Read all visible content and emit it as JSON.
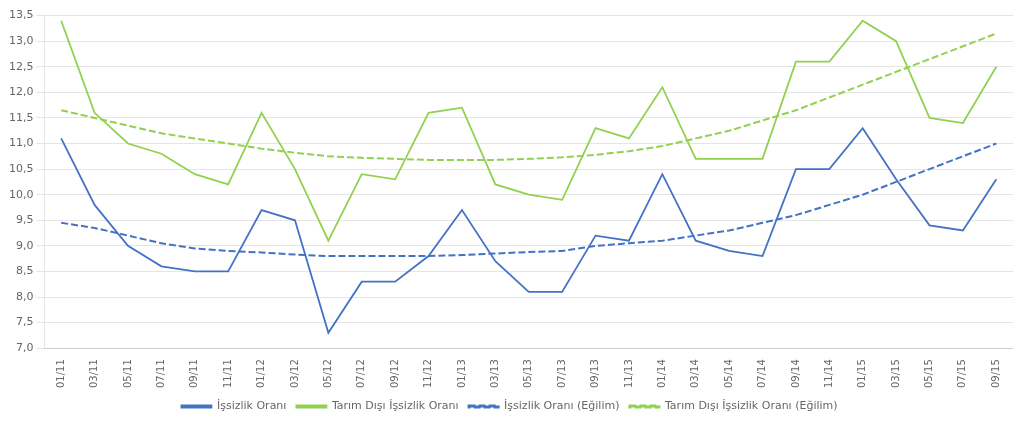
{
  "chart_data": {
    "type": "line",
    "categories": [
      "01/11",
      "03/11",
      "05/11",
      "07/11",
      "09/11",
      "11/11",
      "01/12",
      "03/12",
      "05/12",
      "07/12",
      "09/12",
      "11/12",
      "01/13",
      "03/13",
      "05/13",
      "07/13",
      "09/13",
      "11/13",
      "01/14",
      "03/14",
      "05/14",
      "07/14",
      "09/14",
      "11/14",
      "01/15",
      "03/15",
      "05/15",
      "07/15",
      "09/15"
    ],
    "series": [
      {
        "name": "İşsizlik Oranı",
        "color": "#4472C4",
        "line_style": "solid",
        "values": [
          11.1,
          9.8,
          9.0,
          8.6,
          8.5,
          8.5,
          9.7,
          9.5,
          7.3,
          8.3,
          8.3,
          8.8,
          9.7,
          8.7,
          8.1,
          8.1,
          9.2,
          9.1,
          10.4,
          9.1,
          8.9,
          8.8,
          10.5,
          10.5,
          11.3,
          10.3,
          9.4,
          9.3,
          10.3
        ]
      },
      {
        "name": "Tarım Dışı İşsizlik Oranı",
        "color": "#92D050",
        "line_style": "solid",
        "values": [
          13.4,
          11.6,
          11.0,
          10.8,
          10.4,
          10.2,
          11.6,
          10.5,
          9.1,
          10.4,
          10.3,
          11.6,
          11.7,
          10.2,
          10.0,
          9.9,
          11.3,
          11.1,
          12.1,
          10.7,
          10.7,
          10.7,
          12.6,
          12.6,
          13.4,
          13.0,
          11.5,
          11.4,
          12.5
        ]
      },
      {
        "name": "İşsizlik Oranı (Eğilim)",
        "color": "#4472C4",
        "line_style": "dashed",
        "values": [
          9.45,
          9.35,
          9.2,
          9.05,
          8.95,
          8.9,
          8.87,
          8.83,
          8.8,
          8.8,
          8.8,
          8.8,
          8.82,
          8.85,
          8.88,
          8.9,
          9.0,
          9.05,
          9.1,
          9.2,
          9.3,
          9.45,
          9.6,
          9.8,
          10.0,
          10.25,
          10.5,
          10.75,
          11.0
        ]
      },
      {
        "name": "Tarım Dışı İşsizlik Oranı (Eğilim)",
        "color": "#92D050",
        "line_style": "dashed",
        "values": [
          11.65,
          11.5,
          11.35,
          11.2,
          11.1,
          11.0,
          10.9,
          10.82,
          10.75,
          10.72,
          10.7,
          10.68,
          10.68,
          10.68,
          10.7,
          10.73,
          10.78,
          10.85,
          10.95,
          11.1,
          11.25,
          11.45,
          11.65,
          11.9,
          12.15,
          12.4,
          12.65,
          12.9,
          13.15
        ]
      }
    ],
    "ylim": [
      7.0,
      13.5
    ],
    "yticks": [
      {
        "value": 7.0,
        "label": "7,0"
      },
      {
        "value": 7.5,
        "label": "7,5"
      },
      {
        "value": 8.0,
        "label": "8,0"
      },
      {
        "value": 8.5,
        "label": "8,5"
      },
      {
        "value": 9.0,
        "label": "9,0"
      },
      {
        "value": 9.5,
        "label": "9,5"
      },
      {
        "value": 10.0,
        "label": "10,0"
      },
      {
        "value": 10.5,
        "label": "10,5"
      },
      {
        "value": 11.0,
        "label": "11,0"
      },
      {
        "value": 11.5,
        "label": "11,5"
      },
      {
        "value": 12.0,
        "label": "12,0"
      },
      {
        "value": 12.5,
        "label": "12,5"
      },
      {
        "value": 13.0,
        "label": "13,0"
      },
      {
        "value": 13.5,
        "label": "13,5"
      }
    ],
    "grid": true,
    "legend": "bottom"
  }
}
